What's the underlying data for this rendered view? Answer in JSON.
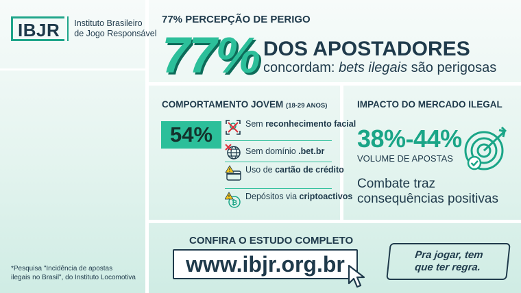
{
  "logo": {
    "mark": "IBJR",
    "line1": "Instituto Brasileiro",
    "line2": "de Jogo Responsável"
  },
  "footnote": {
    "line1": "*Pesquisa \"Incidência de apostas",
    "line2": "ilegais no Brasil\", do Instituto Locomotiva"
  },
  "perception": {
    "title": "77% PERCEPÇÃO DE PERIGO",
    "big": "77%",
    "headline": "DOS APOSTADORES",
    "sub_prefix": "concordam: ",
    "sub_italic": "bets ilegais",
    "sub_suffix": " são perigosas"
  },
  "young": {
    "title": "COMPORTAMENTO JOVEM",
    "age_range": "(18-29 ANOS)",
    "percent": "54%",
    "items": [
      {
        "icon": "face-scan-icon",
        "plain": "Sem ",
        "bold": "reconhecimento facial",
        "tail": ""
      },
      {
        "icon": "globe-icon",
        "plain": "Sem domínio ",
        "bold": ".bet.br",
        "tail": ""
      },
      {
        "icon": "credit-card-warning-icon",
        "plain": "Uso de ",
        "bold": "cartão de crédito",
        "tail": ""
      },
      {
        "icon": "bitcoin-warning-icon",
        "plain": "Depósitos via ",
        "bold": "criptoactivos",
        "tail": ""
      }
    ]
  },
  "market": {
    "title": "IMPACTO DO MERCADO ILEGAL",
    "percent_range": "38%-44%",
    "volume_label": "VOLUME DE APOSTAS",
    "combat_line1": "Combate traz",
    "combat_line2": "consequências positivas"
  },
  "cta": {
    "title": "CONFIRA O ESTUDO COMPLETO",
    "url": "www.ibjr.org.br",
    "slogan_line1": "Pra jogar, tem",
    "slogan_line2": "que ter regra."
  },
  "colors": {
    "accent": "#2cbf9a",
    "accent_dark": "#0d6b59",
    "text": "#1f3a4b",
    "warning": "#f5c518",
    "alert": "#e0303a"
  }
}
